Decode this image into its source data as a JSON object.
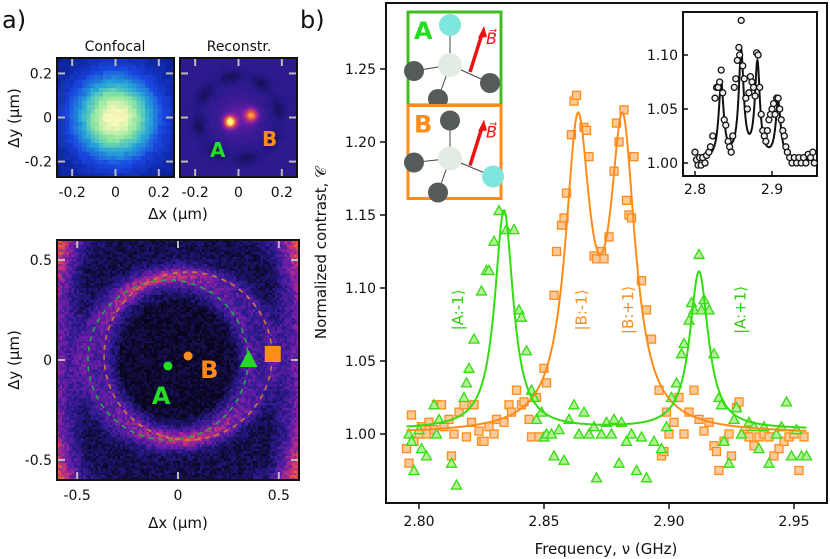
{
  "panel_labels": {
    "a": "a)",
    "b": "b)"
  },
  "chart_data": [
    {
      "id": "confocal",
      "type": "heatmap",
      "title": "Confocal",
      "colormap": "blue-green-yellow",
      "xlabel": "Δx (µm)",
      "ylabel": "Δy (µm)",
      "xlim": [
        -0.27,
        0.27
      ],
      "ylim": [
        -0.27,
        0.27
      ],
      "xticks": [
        -0.2,
        0,
        0.2
      ],
      "xtick_labels": [
        "-0.2",
        "0",
        "0.2"
      ],
      "yticks": [
        0.2,
        0,
        -0.2
      ],
      "ytick_labels": [
        "0.2",
        "0",
        "-0.2"
      ]
    },
    {
      "id": "reconstruction",
      "type": "heatmap",
      "title": "Reconstr.",
      "colormap": "inferno",
      "xlim": [
        -0.27,
        0.27
      ],
      "ylim": [
        -0.27,
        0.27
      ],
      "xticks": [
        -0.2,
        0,
        0.2
      ],
      "xtick_labels": [
        "-0.2",
        "0",
        "0.2"
      ],
      "annotations": [
        {
          "text": "A",
          "color": "#22dd22"
        },
        {
          "text": "B",
          "color": "#ff8c1a"
        }
      ]
    },
    {
      "id": "ring-scan",
      "type": "heatmap",
      "colormap": "inferno",
      "xlabel": "Δx (µm)",
      "ylabel": "Δy (µm)",
      "xlim": [
        -0.6,
        0.6
      ],
      "ylim": [
        -0.6,
        0.6
      ],
      "xticks": [
        -0.5,
        0,
        0.5
      ],
      "xtick_labels": [
        "-0.5",
        "0",
        "0.5"
      ],
      "yticks": [
        0.5,
        0,
        -0.5
      ],
      "ytick_labels": [
        "0.5",
        "0",
        "-0.5"
      ],
      "markers": [
        {
          "label": "A",
          "shape": "circle",
          "x": -0.05,
          "y": -0.03,
          "color": "#22dd22"
        },
        {
          "label": "B",
          "shape": "circle",
          "x": 0.05,
          "y": 0.02,
          "color": "#ff8c1a"
        },
        {
          "shape": "triangle",
          "x": 0.35,
          "y": 0.0,
          "color": "#22dd22"
        },
        {
          "shape": "square",
          "x": 0.47,
          "y": 0.03,
          "color": "#ff8c1a"
        }
      ],
      "rings": [
        {
          "cx": -0.05,
          "cy": 0.0,
          "r": 0.4,
          "color": "#22aa44"
        },
        {
          "cx": 0.05,
          "cy": 0.02,
          "r": 0.42,
          "color": "#c87a3a"
        }
      ]
    },
    {
      "id": "odmr-spectrum",
      "type": "scatter",
      "xlabel": "Frequency, ν (GHz)",
      "ylabel": "Normalized contrast, 𝒞",
      "xlim": [
        2.787,
        2.963
      ],
      "ylim": [
        0.958,
        1.28
      ],
      "xticks": [
        2.8,
        2.85,
        2.9,
        2.95
      ],
      "xtick_labels": [
        "2.80",
        "2.85",
        "2.90",
        "2.95"
      ],
      "yticks": [
        1.0,
        1.05,
        1.1,
        1.15,
        1.2,
        1.25
      ],
      "ytick_labels": [
        "1.00",
        "1.05",
        "1.10",
        "1.15",
        "1.20",
        "1.25"
      ],
      "state_labels": [
        {
          "text": "|A:-1⟩",
          "x": 2.8155,
          "color": "#33cc11"
        },
        {
          "text": "|B:-1⟩",
          "x": 2.865,
          "color": "#ff8c1a"
        },
        {
          "text": "|B:+1⟩",
          "x": 2.8835,
          "color": "#ff8c1a"
        },
        {
          "text": "|A:+1⟩",
          "x": 2.9285,
          "color": "#33cc11"
        }
      ],
      "series": [
        {
          "marker": "triangle",
          "color": "#33dd11",
          "fit": {
            "baseline": 1.003,
            "width": 0.0045,
            "peaks": [
              [
                2.834,
                0.15
              ],
              [
                2.912,
                0.108
              ]
            ]
          },
          "x": [
            2.796,
            2.797,
            2.798,
            2.8,
            2.801,
            2.803,
            2.806,
            2.807,
            2.808,
            2.813,
            2.815,
            2.818,
            2.819,
            2.82,
            2.822,
            2.825,
            2.827,
            2.828,
            2.83,
            2.832,
            2.835,
            2.838,
            2.84,
            2.841,
            2.843,
            2.845,
            2.846,
            2.847,
            2.849,
            2.85,
            2.851,
            2.853,
            2.854,
            2.856,
            2.858,
            2.86,
            2.862,
            2.864,
            2.866,
            2.868,
            2.87,
            2.871,
            2.873,
            2.875,
            2.877,
            2.878,
            2.88,
            2.881,
            2.883,
            2.885,
            2.887,
            2.889,
            2.891,
            2.894,
            2.897,
            2.899,
            2.901,
            2.903,
            2.905,
            2.906,
            2.908,
            2.909,
            2.91,
            2.912,
            2.913,
            2.914,
            2.916,
            2.918,
            2.92,
            2.921,
            2.922,
            2.924,
            2.926,
            2.927,
            2.929,
            2.932,
            2.934,
            2.936,
            2.938,
            2.94,
            2.943,
            2.945,
            2.947,
            2.949,
            2.951,
            2.953,
            2.955
          ],
          "y": [
            1.0,
            0.995,
            0.975,
            1.003,
            0.99,
            0.985,
            1.02,
            1.0,
            1.01,
            0.98,
            0.965,
            1.025,
            1.035,
            1.045,
            1.065,
            1.098,
            1.112,
            1.112,
            1.132,
            1.153,
            1.14,
            1.14,
            1.085,
            1.08,
            1.057,
            1.03,
            1.025,
            1.01,
            1.015,
            0.998,
            1.0,
            1.0,
            0.985,
            1.003,
            0.982,
            1.01,
            1.02,
            1.0,
            1.015,
            1.0,
            1.005,
            0.97,
            1.0,
            1.008,
            1.0,
            1.01,
            0.98,
            1.008,
            0.995,
            1.0,
            0.975,
            0.998,
            0.97,
            0.995,
            0.99,
            1.005,
            1.025,
            1.035,
            1.055,
            1.062,
            1.078,
            1.09,
            1.085,
            1.123,
            1.085,
            1.092,
            1.085,
            1.055,
            1.025,
            1.02,
            0.995,
            0.98,
            1.01,
            1.018,
            1.0,
            1.008,
            1.005,
            0.99,
            1.005,
            0.98,
            1.0,
            1.005,
            1.022,
            0.985,
            1.003,
            0.985,
            0.985
          ]
        },
        {
          "marker": "square",
          "color": "#ff8c1a",
          "fit": {
            "baseline": 1.0,
            "width": 0.006,
            "peaks": [
              [
                2.8635,
                0.2
              ],
              [
                2.8815,
                0.2
              ]
            ]
          },
          "x": [
            2.795,
            2.796,
            2.797,
            2.798,
            2.8,
            2.801,
            2.803,
            2.804,
            2.806,
            2.807,
            2.809,
            2.81,
            2.812,
            2.813,
            2.814,
            2.816,
            2.818,
            2.819,
            2.821,
            2.822,
            2.824,
            2.825,
            2.826,
            2.828,
            2.83,
            2.831,
            2.834,
            2.836,
            2.837,
            2.839,
            2.841,
            2.842,
            2.844,
            2.845,
            2.847,
            2.848,
            2.85,
            2.851,
            2.854,
            2.855,
            2.857,
            2.858,
            2.859,
            2.861,
            2.862,
            2.863,
            2.866,
            2.867,
            2.868,
            2.87,
            2.871,
            2.873,
            2.874,
            2.876,
            2.878,
            2.879,
            2.88,
            2.882,
            2.883,
            2.884,
            2.885,
            2.886,
            2.889,
            2.891,
            2.893,
            2.896,
            2.897,
            2.898,
            2.899,
            2.9,
            2.902,
            2.904,
            2.906,
            2.908,
            2.91,
            2.912,
            2.914,
            2.916,
            2.918,
            2.919,
            2.92,
            2.922,
            2.924,
            2.925,
            2.927,
            2.928,
            2.93,
            2.932,
            2.934,
            2.936,
            2.938,
            2.94,
            2.942,
            2.944,
            2.946,
            2.948,
            2.95,
            2.952,
            2.954
          ],
          "y": [
            0.99,
            0.98,
            1.013,
            0.995,
            1.0,
            1.005,
            1.0,
            1.008,
            1.003,
            1.02,
            1.02,
            1.005,
            1.01,
            0.985,
            1.0,
            1.015,
            1.02,
            0.998,
            1.008,
            1.02,
            1.002,
            0.995,
            0.995,
            1.005,
            1.0,
            1.01,
            1.008,
            1.02,
            1.015,
            1.03,
            1.02,
            1.022,
            1.01,
            0.998,
            1.025,
            0.998,
            1.045,
            1.035,
            1.095,
            1.125,
            1.143,
            1.148,
            1.165,
            1.205,
            1.228,
            1.232,
            1.21,
            1.208,
            1.19,
            1.122,
            1.12,
            1.125,
            1.12,
            1.135,
            1.18,
            1.213,
            1.2,
            1.222,
            1.16,
            1.15,
            1.148,
            1.19,
            1.105,
            1.085,
            1.065,
            1.03,
            0.985,
            0.988,
            1.015,
            1.0,
            1.008,
            1.025,
            1.0,
            1.015,
            1.03,
            1.01,
            1.002,
            1.008,
            0.992,
            0.988,
            0.975,
            0.995,
            1.0,
            0.985,
            1.018,
            1.022,
            1.0,
            0.998,
            0.992,
            0.998,
            1.0,
            0.998,
            0.985,
            0.99,
            0.995,
            0.998,
            1.0,
            0.975,
            0.998
          ]
        }
      ]
    },
    {
      "id": "inset-spectrum",
      "type": "scatter",
      "xlim": [
        2.784,
        2.958
      ],
      "ylim": [
        0.98,
        1.135
      ],
      "xticks": [
        2.8,
        2.9
      ],
      "xtick_labels": [
        "2.8",
        "2.9"
      ],
      "yticks": [
        1.0,
        1.05,
        1.1
      ],
      "ytick_labels": [
        "1.00",
        "1.05",
        "1.10"
      ],
      "series": [
        {
          "marker": "circle",
          "color": "#111111",
          "fit": {
            "baseline": 1.002,
            "width": 0.004,
            "peaks": [
              [
                2.834,
                0.07
              ],
              [
                2.86,
                0.098
              ],
              [
                2.881,
                0.088
              ],
              [
                2.908,
                0.053
              ]
            ]
          },
          "x": [
            2.8,
            2.802,
            2.804,
            2.806,
            2.808,
            2.81,
            2.813,
            2.815,
            2.818,
            2.82,
            2.823,
            2.826,
            2.828,
            2.83,
            2.832,
            2.834,
            2.836,
            2.838,
            2.84,
            2.843,
            2.845,
            2.847,
            2.849,
            2.851,
            2.853,
            2.855,
            2.857,
            2.858,
            2.86,
            2.862,
            2.864,
            2.866,
            2.868,
            2.87,
            2.872,
            2.874,
            2.876,
            2.878,
            2.88,
            2.882,
            2.884,
            2.886,
            2.888,
            2.89,
            2.892,
            2.894,
            2.896,
            2.898,
            2.9,
            2.902,
            2.904,
            2.906,
            2.908,
            2.91,
            2.912,
            2.914,
            2.916,
            2.918,
            2.92,
            2.923,
            2.926,
            2.929,
            2.932,
            2.935,
            2.938,
            2.941,
            2.944,
            2.947,
            2.95,
            2.953,
            2.955
          ],
          "y": [
            1.01,
            1.003,
            0.998,
            1.005,
            0.998,
            1.005,
            1.0,
            1.007,
            1.01,
            1.015,
            1.025,
            1.06,
            1.07,
            1.07,
            1.075,
            1.086,
            1.065,
            1.04,
            1.035,
            1.02,
            1.015,
            1.01,
            1.025,
            1.07,
            1.078,
            1.095,
            1.107,
            1.1,
            1.132,
            1.09,
            1.078,
            1.06,
            1.05,
            1.065,
            1.08,
            1.075,
            1.07,
            1.062,
            1.102,
            1.1,
            1.07,
            1.045,
            1.03,
            1.025,
            1.02,
            1.03,
            1.04,
            1.045,
            1.05,
            1.055,
            1.045,
            1.06,
            1.06,
            1.05,
            1.04,
            1.03,
            1.025,
            1.015,
            1.01,
            1.005,
            1.0,
            1.005,
            1.0,
            1.005,
            1.0,
            1.005,
            1.0,
            1.008,
            1.005,
            1.01,
            1.0
          ]
        }
      ]
    }
  ],
  "molecule_insets": [
    {
      "label": "A",
      "label_color": "#22dd22",
      "frame_color": "#44bb22",
      "field_label": "B⃗",
      "field_color": "#ee1111"
    },
    {
      "label": "B",
      "label_color": "#ff8c1a",
      "frame_color": "#ff8c1a",
      "field_label": "B⃗",
      "field_color": "#ee1111"
    }
  ]
}
